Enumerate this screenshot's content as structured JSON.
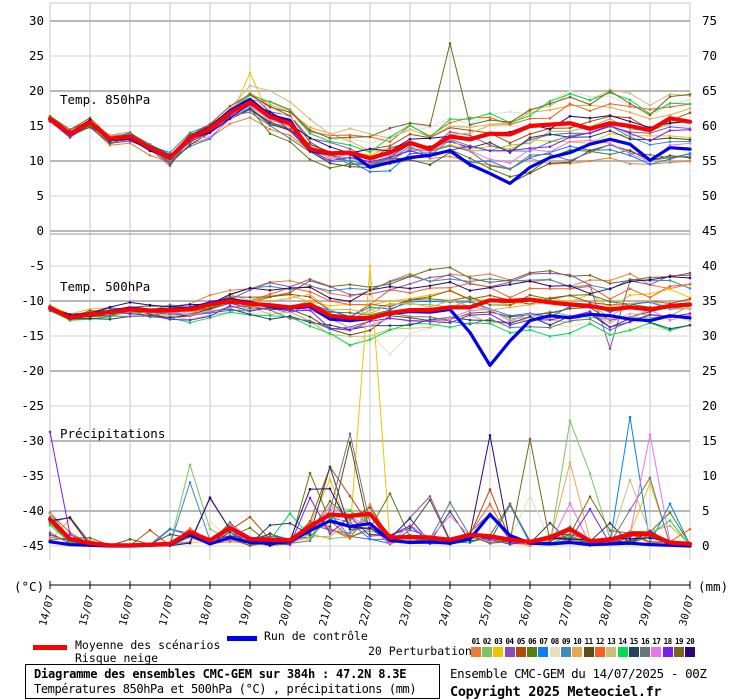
{
  "chart_data": {
    "type": "line",
    "title": "Diagramme des ensembles CMC-GEM sur 384h : 47.2N 8.3E",
    "subtitle": "Températures 850hPa et 500hPa (°C) , précipitations (mm)",
    "model_run": "Ensemble CMC-GEM du 14/07/2025 - 00Z",
    "copyright": "Copyright 2025 Meteociel.fr",
    "time_step_hours": 12,
    "forecast_length_hours": 384,
    "x_dates": [
      "14/07",
      "15/07",
      "16/07",
      "17/07",
      "18/07",
      "19/07",
      "20/07",
      "21/07",
      "22/07",
      "23/07",
      "24/07",
      "25/07",
      "26/07",
      "27/07",
      "28/07",
      "29/07",
      "30/07"
    ],
    "left_axis": {
      "unit": "(°C)",
      "min": -45,
      "max": 30,
      "ticks": [
        30,
        25,
        20,
        15,
        10,
        5,
        0,
        -5,
        -10,
        -15,
        -20,
        -25,
        -30,
        -35,
        -40,
        -45
      ]
    },
    "right_axis": {
      "unit": "(mm)",
      "min": 0,
      "max": 75,
      "ticks": [
        75,
        70,
        65,
        60,
        55,
        50,
        45,
        40,
        35,
        30,
        25,
        20,
        15,
        10,
        5,
        0
      ]
    },
    "legend": {
      "mean_label": "Moyenne des scénarios",
      "mean_sublabel": "Risque neige",
      "control_label": "Run de contrôle",
      "perturbations_label": "20 Perturbations",
      "perturbation_ids": [
        "01",
        "02",
        "03",
        "04",
        "05",
        "06",
        "07",
        "08",
        "09",
        "10",
        "11",
        "12",
        "13",
        "14",
        "15",
        "16",
        "17",
        "18",
        "19",
        "20"
      ]
    },
    "colors": {
      "mean": "#ff0000",
      "control": "#0000ee",
      "grid_major": "#b8b8b8",
      "grid_minor": "#d6d6d6",
      "grid_vertical": "#c8c8c8",
      "members": [
        "#e87e35",
        "#7dc360",
        "#efc400",
        "#8a4fb5",
        "#b04a08",
        "#567f0a",
        "#0a7ef5",
        "#e5dfc0",
        "#3c8cbe",
        "#e8a84f",
        "#5c4c16",
        "#f95e1e",
        "#ccbe72",
        "#00dc50",
        "#24445c",
        "#68777b",
        "#ea73f2",
        "#7b1ef2",
        "#7b651e",
        "#2e0573"
      ]
    },
    "panels": [
      {
        "id": "t850",
        "label": "Temp. 850hPa",
        "axis": "left",
        "mean": [
          16.0,
          13.9,
          15.5,
          13.2,
          13.5,
          11.9,
          10.5,
          13.3,
          14.6,
          16.9,
          18.4,
          16.3,
          15.4,
          11.7,
          11.1,
          11.2,
          10.4,
          11.2,
          12.6,
          11.7,
          13.5,
          13.1,
          13.9,
          13.8,
          15.0,
          15.2,
          15.4,
          14.6,
          15.4,
          15.0,
          14.4,
          16.1,
          15.6
        ],
        "control": [
          16.0,
          13.8,
          15.4,
          13.0,
          13.6,
          11.8,
          10.4,
          13.4,
          14.8,
          17.2,
          18.8,
          16.5,
          15.8,
          11.5,
          11.0,
          11.2,
          9.1,
          9.8,
          10.5,
          10.8,
          11.5,
          9.5,
          8.2,
          6.8,
          9.1,
          10.5,
          11.2,
          12.4,
          13.1,
          12.4,
          10.1,
          11.9,
          11.7
        ],
        "env_min": [
          15.2,
          12.8,
          14.2,
          12.0,
          12.4,
          10.6,
          9.3,
          11.5,
          12.8,
          14.8,
          16.2,
          13.8,
          12.6,
          9.8,
          9.0,
          9.2,
          8.3,
          8.6,
          9.8,
          9.3,
          10.2,
          9.0,
          8.0,
          6.8,
          8.2,
          8.8,
          9.2,
          9.8,
          10.2,
          9.6,
          8.8,
          9.6,
          9.2
        ],
        "env_max": [
          16.8,
          15.0,
          16.6,
          14.4,
          14.8,
          13.2,
          11.8,
          15.2,
          16.6,
          19.4,
          21.6,
          20.6,
          19.2,
          16.4,
          15.2,
          15.0,
          14.4,
          15.0,
          16.4,
          15.8,
          17.6,
          18.0,
          18.6,
          18.8,
          19.6,
          20.6,
          22.0,
          21.2,
          22.4,
          21.0,
          19.8,
          21.6,
          22.4
        ],
        "outliers": [
          {
            "member_index": 18,
            "t_index": 20,
            "value": 26.8
          },
          {
            "member_index": 2,
            "t_index": 10,
            "value": 22.6
          },
          {
            "member_index": 3,
            "t_index": 6,
            "value": 9.3
          }
        ]
      },
      {
        "id": "t500",
        "label": "Temp. 500hPa",
        "axis": "left",
        "mean": [
          -11.0,
          -12.4,
          -11.9,
          -11.6,
          -11.2,
          -11.4,
          -11.3,
          -11.2,
          -10.5,
          -10.0,
          -10.4,
          -10.6,
          -10.9,
          -10.5,
          -12.1,
          -12.4,
          -12.4,
          -11.7,
          -11.3,
          -11.3,
          -10.9,
          -10.9,
          -9.9,
          -10.0,
          -9.8,
          -10.2,
          -10.5,
          -10.7,
          -11.2,
          -10.9,
          -11.2,
          -10.7,
          -10.5
        ],
        "control": [
          -11.0,
          -12.3,
          -11.8,
          -11.5,
          -11.0,
          -11.3,
          -11.2,
          -11.0,
          -10.3,
          -9.8,
          -10.2,
          -10.8,
          -11.0,
          -10.8,
          -12.6,
          -12.8,
          -12.5,
          -11.8,
          -11.5,
          -11.6,
          -11.2,
          -14.5,
          -19.2,
          -15.7,
          -12.8,
          -12.1,
          -12.4,
          -11.9,
          -12.1,
          -12.6,
          -12.8,
          -12.1,
          -12.4
        ],
        "env_min": [
          -11.8,
          -13.4,
          -12.8,
          -12.6,
          -12.2,
          -12.6,
          -13.0,
          -13.6,
          -12.4,
          -11.6,
          -12.0,
          -12.6,
          -13.2,
          -13.6,
          -15.2,
          -16.4,
          -15.8,
          -15.0,
          -14.8,
          -14.6,
          -14.2,
          -14.0,
          -14.6,
          -15.2,
          -14.4,
          -15.6,
          -14.6,
          -14.0,
          -15.4,
          -14.2,
          -13.8,
          -14.4,
          -13.6
        ],
        "env_max": [
          -10.2,
          -11.4,
          -11.0,
          -10.6,
          -10.2,
          -10.0,
          -9.6,
          -9.2,
          -8.6,
          -8.0,
          -7.6,
          -7.2,
          -6.8,
          -6.2,
          -6.6,
          -6.4,
          -5.8,
          -5.2,
          -4.8,
          -4.4,
          -4.2,
          -5.0,
          -5.4,
          -5.8,
          -5.2,
          -4.8,
          -5.6,
          -6.0,
          -6.4,
          -5.8,
          -6.2,
          -5.4,
          -5.8
        ],
        "outliers": [
          {
            "member_index": 7,
            "t_index": 17,
            "value": -17.6
          },
          {
            "member_index": 3,
            "t_index": 28,
            "value": -16.8
          }
        ]
      },
      {
        "id": "precip",
        "label": "Précipitations",
        "axis": "right",
        "mean": [
          3.8,
          1.0,
          0.4,
          0.1,
          0.1,
          0.2,
          0.3,
          2.0,
          0.8,
          2.6,
          1.0,
          0.9,
          0.8,
          2.8,
          4.5,
          4.3,
          4.6,
          1.2,
          1.3,
          1.2,
          0.9,
          1.6,
          1.4,
          0.9,
          0.6,
          1.2,
          2.4,
          0.7,
          0.9,
          1.7,
          1.7,
          0.5,
          0.3
        ],
        "control": [
          0.6,
          0.2,
          0.1,
          0.0,
          0.0,
          0.1,
          0.2,
          1.6,
          0.3,
          1.2,
          0.5,
          0.4,
          0.6,
          2.2,
          3.6,
          2.8,
          3.2,
          0.8,
          0.5,
          0.6,
          0.4,
          1.0,
          4.5,
          1.5,
          0.4,
          0.3,
          0.5,
          0.2,
          0.3,
          0.4,
          0.2,
          0.1,
          0.0
        ],
        "env_min": [
          0,
          0,
          0,
          0,
          0,
          0,
          0,
          0,
          0,
          0,
          0,
          0,
          0,
          0,
          0,
          0,
          0,
          0,
          0,
          0,
          0,
          0,
          0,
          0,
          0,
          0,
          0,
          0,
          0,
          0,
          0,
          0,
          0
        ],
        "env_max": [
          6.0,
          4.5,
          2.5,
          1.5,
          2.0,
          4.0,
          3.0,
          11.6,
          7.5,
          6.0,
          5.0,
          4.0,
          5.5,
          16.5,
          15.5,
          17.0,
          15.0,
          8.0,
          5.0,
          9.5,
          7.0,
          10.5,
          13.0,
          9.0,
          12.0,
          9.5,
          14.0,
          13.0,
          5.0,
          15.0,
          12.0,
          7.0,
          4.0
        ],
        "outliers": [
          {
            "member_index": 17,
            "t_index": 0,
            "value": 16.3
          },
          {
            "member_index": 2,
            "t_index": 16,
            "value": 40.0
          },
          {
            "member_index": 1,
            "t_index": 7,
            "value": 11.6
          },
          {
            "member_index": 1,
            "t_index": 26,
            "value": 17.9
          },
          {
            "member_index": 19,
            "t_index": 22,
            "value": 15.8
          },
          {
            "member_index": 18,
            "t_index": 24,
            "value": 15.3
          },
          {
            "member_index": 6,
            "t_index": 29,
            "value": 18.4
          },
          {
            "member_index": 16,
            "t_index": 30,
            "value": 15.9
          }
        ]
      }
    ]
  }
}
